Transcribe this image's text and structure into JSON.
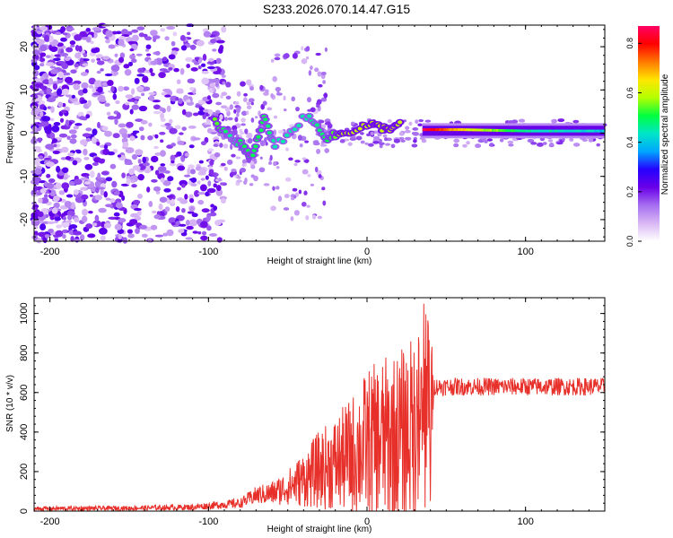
{
  "title": "S233.2026.070.14.47.G15",
  "colors": {
    "snr_line": "#e8302a",
    "axis": "#000000",
    "background": "#ffffff",
    "colormap": [
      "#ffffff",
      "#d9b8f5",
      "#a66ef0",
      "#6a00e8",
      "#2600ff",
      "#00a6ff",
      "#00e6c8",
      "#00ff40",
      "#b4ff00",
      "#ffe600",
      "#ff7a00",
      "#ff0000",
      "#ff0066"
    ]
  },
  "chart_data": [
    {
      "type": "heatmap",
      "title": "",
      "xlabel": "Height of straight line (km)",
      "ylabel": "Frequency (Hz)",
      "xlim": [
        -210,
        150
      ],
      "ylim": [
        -25,
        25
      ],
      "x_ticks": [
        -200,
        -100,
        0,
        100
      ],
      "x_tick_labels": [
        "-200",
        "-100",
        "0",
        "100"
      ],
      "y_ticks": [
        -20,
        -10,
        0,
        10,
        20
      ],
      "y_tick_labels": [
        "-20",
        "-10",
        "0",
        "10",
        "20"
      ],
      "colorbar": {
        "label": "Normalized spectral amplitude",
        "range": [
          0,
          0.87
        ],
        "ticks": [
          0.0,
          0.2,
          0.4,
          0.6,
          0.8
        ],
        "tick_labels": [
          "0.0",
          "0.2",
          "0.4",
          "0.6",
          "0.8"
        ]
      },
      "tone_track": [
        {
          "x": 35,
          "y": 0.8,
          "amp": 0.85
        },
        {
          "x": 60,
          "y": 0.8,
          "amp": 0.65
        },
        {
          "x": 100,
          "y": 0.5,
          "amp": 0.45
        },
        {
          "x": 150,
          "y": 0.5,
          "amp": 0.4
        }
      ],
      "features": [
        {
          "x": -96,
          "y": 2.5,
          "amp": 0.55
        },
        {
          "x": -85,
          "y": -1,
          "amp": 0.45
        },
        {
          "x": -78,
          "y": -3,
          "amp": 0.5
        },
        {
          "x": -72,
          "y": -5.5,
          "amp": 0.5
        },
        {
          "x": -65,
          "y": 3.5,
          "amp": 0.5
        },
        {
          "x": -58,
          "y": -3,
          "amp": 0.45
        },
        {
          "x": -38,
          "y": 4,
          "amp": 0.45
        },
        {
          "x": -25,
          "y": -1,
          "amp": 0.5
        },
        {
          "x": -15,
          "y": 0,
          "amp": 0.6
        },
        {
          "x": 2,
          "y": 2,
          "amp": 0.6
        },
        {
          "x": 12,
          "y": 1,
          "amp": 0.6
        },
        {
          "x": 22,
          "y": 2,
          "amp": 0.6
        }
      ]
    },
    {
      "type": "line",
      "title": "",
      "xlabel": "Height of straight line (km)",
      "ylabel": "SNR (10 * v/v)",
      "xlim": [
        -210,
        150
      ],
      "ylim": [
        0,
        1080
      ],
      "x_ticks": [
        -200,
        -100,
        0,
        100
      ],
      "x_tick_labels": [
        "-200",
        "-100",
        "0",
        "100"
      ],
      "y_ticks": [
        0,
        200,
        400,
        600,
        800,
        1000
      ],
      "y_tick_labels": [
        "0",
        "200",
        "400",
        "600",
        "800",
        "1000"
      ],
      "series": [
        {
          "name": "SNR",
          "x": [
            -210,
            -150,
            -110,
            -80,
            -70,
            -60,
            -50,
            -40,
            -30,
            -20,
            -10,
            0,
            10,
            20,
            30,
            40,
            42,
            80,
            120,
            150
          ],
          "mean": [
            12,
            15,
            20,
            40,
            80,
            90,
            120,
            160,
            210,
            240,
            280,
            340,
            360,
            380,
            420,
            460,
            630,
            630,
            630,
            630
          ],
          "amp": [
            12,
            12,
            15,
            25,
            45,
            60,
            90,
            140,
            200,
            240,
            300,
            380,
            420,
            430,
            480,
            560,
            45,
            45,
            45,
            45
          ]
        }
      ]
    }
  ]
}
